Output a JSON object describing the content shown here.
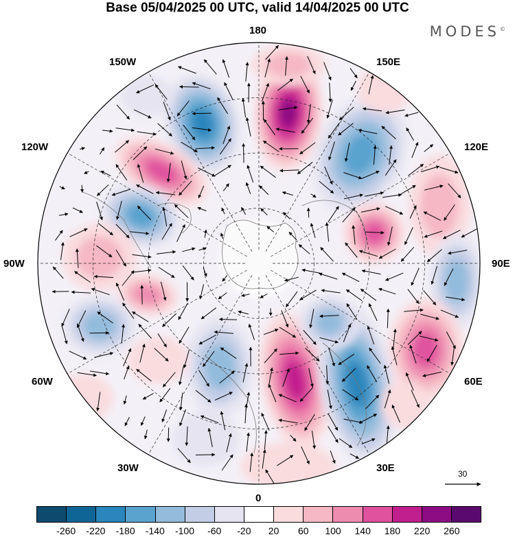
{
  "title": "Base 05/04/2025 00 UTC, valid 14/04/2025 00 UTC",
  "brand": "MODES",
  "brand_mark": "©",
  "longitude_labels": [
    {
      "key": "lon-180",
      "text": "180"
    },
    {
      "key": "lon-150e",
      "text": "150E"
    },
    {
      "key": "lon-120e",
      "text": "120E"
    },
    {
      "key": "lon-90e",
      "text": "90E"
    },
    {
      "key": "lon-60e",
      "text": "60E"
    },
    {
      "key": "lon-30e",
      "text": "30E"
    },
    {
      "key": "lon-0",
      "text": "0"
    },
    {
      "key": "lon-30w",
      "text": "30W"
    },
    {
      "key": "lon-60w",
      "text": "60W"
    },
    {
      "key": "lon-90w",
      "text": "90W"
    },
    {
      "key": "lon-120w",
      "text": "120W"
    },
    {
      "key": "lon-150w",
      "text": "150W"
    }
  ],
  "vector_scale": "30",
  "colorbar": {
    "colors": [
      "#0e4a6e",
      "#0f6596",
      "#2a86bc",
      "#5aa3cf",
      "#93bbdc",
      "#c3cee6",
      "#e6e4f1",
      "#ffffff",
      "#fadcdf",
      "#f5b8c4",
      "#ee8cb0",
      "#e0529e",
      "#c21f8e",
      "#8d0c83",
      "#5a0a6e"
    ],
    "ticks": [
      "-260",
      "-220",
      "-180",
      "-140",
      "-100",
      "-60",
      "-20",
      "20",
      "60",
      "100",
      "140",
      "180",
      "220",
      "260"
    ]
  }
}
